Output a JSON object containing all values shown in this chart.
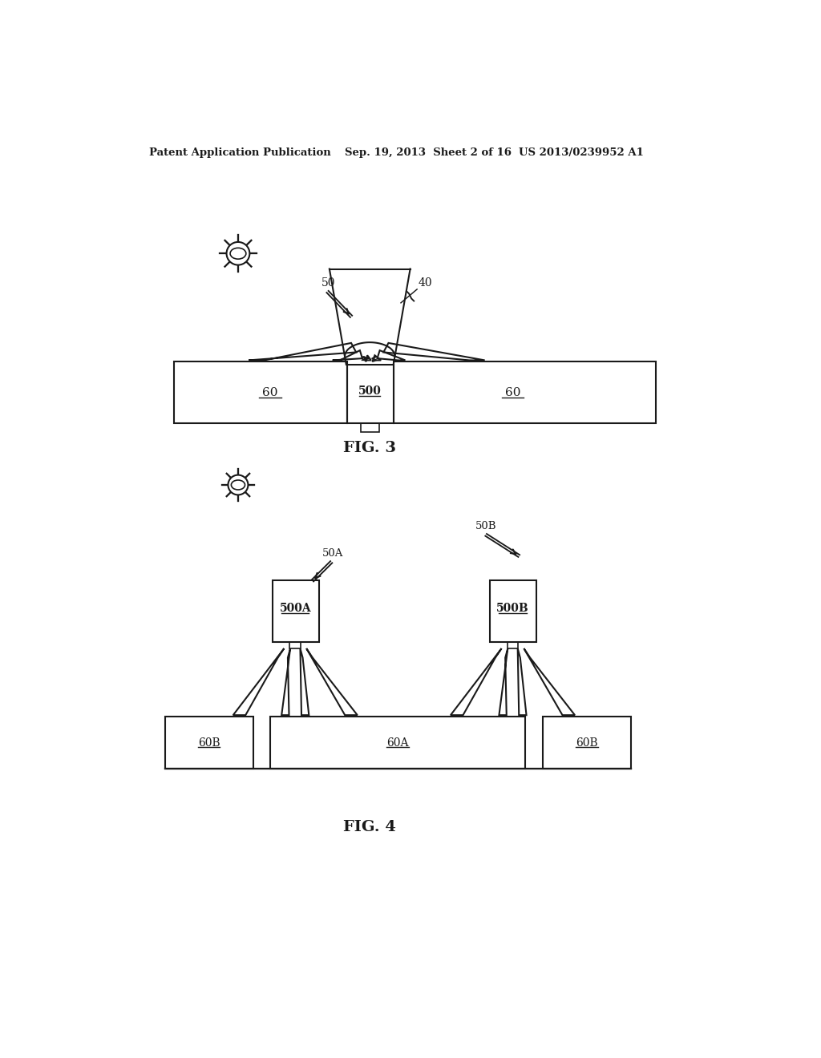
{
  "bg_color": "#ffffff",
  "line_color": "#1a1a1a",
  "header_left": "Patent Application Publication",
  "header_center": "Sep. 19, 2013  Sheet 2 of 16",
  "header_right": "US 2013/0239952 A1",
  "fig3_label": "FIG. 3",
  "fig4_label": "FIG. 4",
  "label_50": "50",
  "label_40": "40",
  "label_500": "500",
  "label_60": "60",
  "label_50A": "50A",
  "label_50B": "50B",
  "label_500A": "500A",
  "label_500B": "500B",
  "label_60A": "60A",
  "label_60B": "60B"
}
